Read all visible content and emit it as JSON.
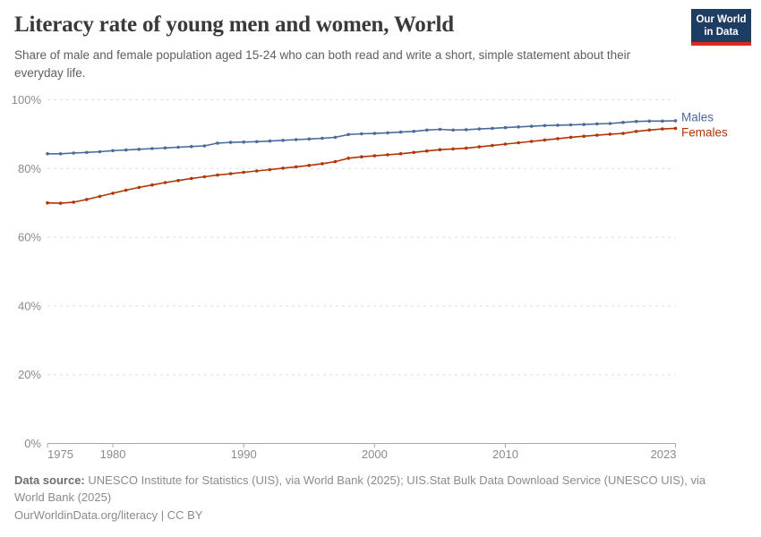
{
  "header": {
    "title": "Literacy rate of young men and women, World",
    "subtitle": "Share of male and female population aged 15-24 who can both read and write a short, simple statement about their everyday life."
  },
  "logo": {
    "line1": "Our World",
    "line2": "in Data",
    "bg_color": "#1d3d63",
    "accent_color": "#dc2a1c"
  },
  "chart_data": {
    "type": "line",
    "title": "Literacy rate of young men and women, World",
    "xlabel": "",
    "ylabel": "",
    "ylim": [
      0,
      100
    ],
    "yticks": [
      0,
      20,
      40,
      60,
      80,
      100
    ],
    "ytick_suffix": "%",
    "xticks": [
      1975,
      1980,
      1990,
      2000,
      2010,
      2023
    ],
    "grid": "horizontal-dashed",
    "legend_position": "right-of-line-end",
    "axis_color": "#a8a8a8",
    "grid_color": "#dedede",
    "tick_label_color": "#8b8b8b",
    "x": [
      1975,
      1976,
      1977,
      1978,
      1979,
      1980,
      1981,
      1982,
      1983,
      1984,
      1985,
      1986,
      1987,
      1988,
      1989,
      1990,
      1991,
      1992,
      1993,
      1994,
      1995,
      1996,
      1997,
      1998,
      1999,
      2000,
      2001,
      2002,
      2003,
      2004,
      2005,
      2006,
      2007,
      2008,
      2009,
      2010,
      2011,
      2012,
      2013,
      2014,
      2015,
      2016,
      2017,
      2018,
      2019,
      2020,
      2021,
      2022,
      2023
    ],
    "series": [
      {
        "name": "Males",
        "color": "#4c6a9c",
        "values": [
          84.3,
          84.3,
          84.5,
          84.7,
          84.9,
          85.2,
          85.4,
          85.6,
          85.8,
          86.0,
          86.2,
          86.4,
          86.6,
          87.4,
          87.6,
          87.7,
          87.8,
          88.0,
          88.2,
          88.4,
          88.6,
          88.8,
          89.1,
          89.9,
          90.1,
          90.2,
          90.4,
          90.6,
          90.8,
          91.2,
          91.4,
          91.2,
          91.3,
          91.5,
          91.7,
          91.9,
          92.1,
          92.3,
          92.5,
          92.6,
          92.7,
          92.8,
          93.0,
          93.1,
          93.4,
          93.7,
          93.8,
          93.8,
          93.9
        ]
      },
      {
        "name": "Females",
        "color": "#b13507",
        "values": [
          70.0,
          69.9,
          70.2,
          71.0,
          71.9,
          72.8,
          73.7,
          74.5,
          75.2,
          75.9,
          76.5,
          77.1,
          77.6,
          78.1,
          78.5,
          78.9,
          79.3,
          79.7,
          80.1,
          80.5,
          80.9,
          81.4,
          82.0,
          83.0,
          83.4,
          83.7,
          84.0,
          84.3,
          84.7,
          85.1,
          85.5,
          85.7,
          85.9,
          86.3,
          86.7,
          87.1,
          87.5,
          87.9,
          88.3,
          88.7,
          89.1,
          89.4,
          89.7,
          90.0,
          90.2,
          90.8,
          91.2,
          91.5,
          91.7
        ]
      }
    ]
  },
  "footer": {
    "source_label": "Data source:",
    "source_text": "UNESCO Institute for Statistics (UIS), via World Bank (2025); UIS.Stat Bulk Data Download Service (UNESCO UIS), via World Bank (2025)",
    "license": "OurWorldinData.org/literacy | CC BY"
  }
}
